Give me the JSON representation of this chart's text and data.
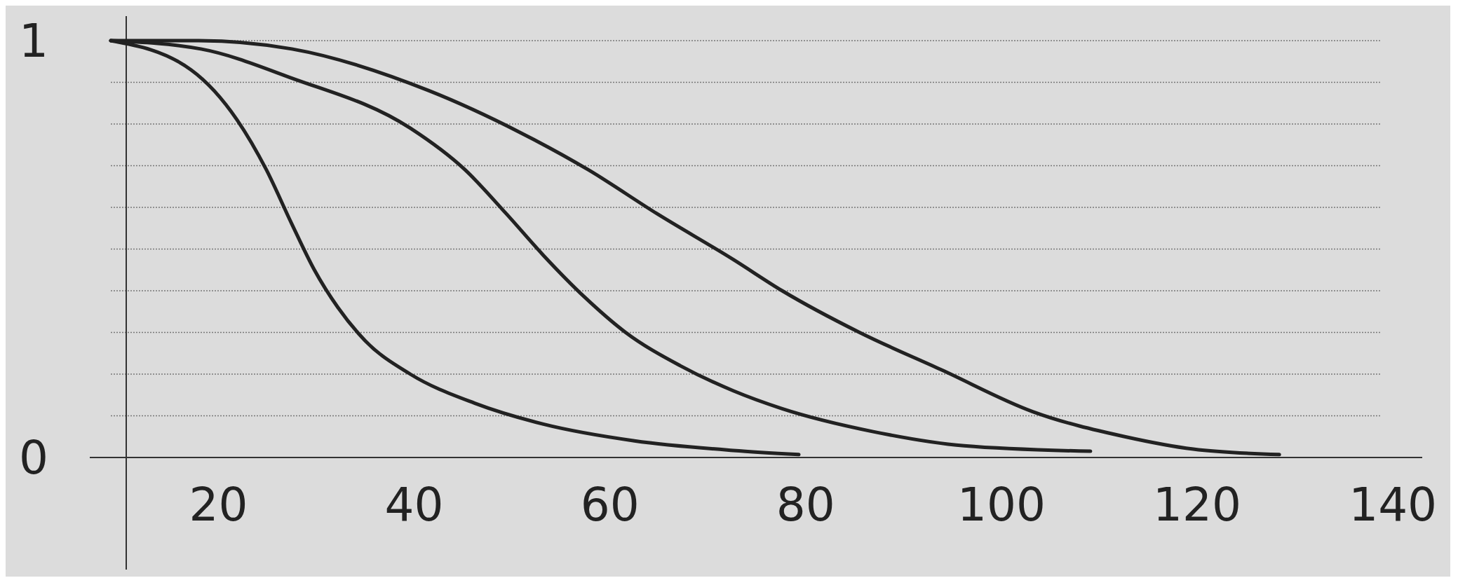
{
  "chart_data": {
    "type": "line",
    "xlim": [
      9,
      143
    ],
    "xticks": [
      20,
      40,
      60,
      80,
      100,
      120,
      140
    ],
    "ylim": [
      0,
      1
    ],
    "yticks": [
      0,
      {
        "value": 0.1,
        "label": null
      },
      {
        "value": 0.2,
        "label": null
      },
      {
        "value": 0.3,
        "label": null
      },
      {
        "value": 0.4,
        "label": null
      },
      {
        "value": 0.5,
        "label": null
      },
      {
        "value": 0.6,
        "label": null
      },
      {
        "value": 0.7,
        "label": null
      },
      {
        "value": 0.8,
        "label": null
      },
      {
        "value": 0.9,
        "label": null
      },
      1
    ],
    "grid": "y",
    "series": [
      {
        "color": "#222222",
        "x": [
          9,
          17.2,
          21.9,
          24.9,
          27.5,
          29.8,
          32.2,
          35,
          39.6,
          46.2,
          53.2,
          62.5,
          72.6,
          79.3
        ],
        "values": [
          1,
          0.93,
          0.81,
          0.69,
          0.56,
          0.45,
          0.36,
          0.28,
          0.2,
          0.13,
          0.08,
          0.04,
          0.017,
          0.007
        ]
      },
      {
        "color": "#222222",
        "x": [
          9,
          18.2,
          27.5,
          39.6,
          45.2,
          49.4,
          53.2,
          57.4,
          61.6,
          67.2,
          72.6,
          77.6,
          86.9,
          96.2,
          109.1
        ],
        "values": [
          1,
          0.98,
          0.91,
          0.79,
          0.69,
          0.585,
          0.485,
          0.385,
          0.3,
          0.22,
          0.16,
          0.117,
          0.062,
          0.028,
          0.015
        ]
      },
      {
        "color": "#222222",
        "x": [
          9,
          18,
          27.5,
          41.5,
          50.8,
          57.8,
          64.8,
          72.6,
          77.6,
          85.5,
          93.9,
          103.2,
          112.6,
          119.6,
          128.4
        ],
        "values": [
          1,
          1,
          0.98,
          0.88,
          0.78,
          0.69,
          0.585,
          0.475,
          0.4,
          0.3,
          0.21,
          0.11,
          0.05,
          0.02,
          0.007
        ]
      }
    ]
  }
}
